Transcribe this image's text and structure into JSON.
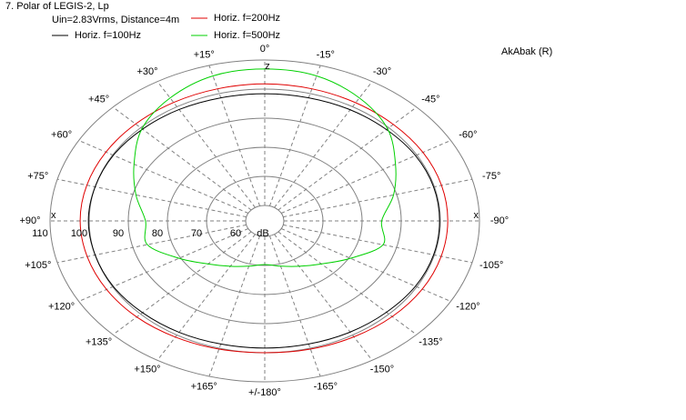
{
  "chart_data": {
    "type": "polar",
    "title": "7. Polar of LEGIS-2, Lp",
    "subtitle": "Uin=2.83Vrms, Distance=4m",
    "watermark": "AkAbak (R)",
    "r_unit": "dB",
    "theta_direction": "counterclockwise",
    "axis_labels": {
      "top": "z",
      "left": "x",
      "right": "x"
    },
    "grid": true,
    "rlim": [
      60,
      110
    ],
    "rticks": [
      60,
      70,
      80,
      90,
      100,
      110
    ],
    "thetaticks": [
      {
        "value": 0,
        "label": "0°"
      },
      {
        "value": 15,
        "label": "+15°"
      },
      {
        "value": 30,
        "label": "+30°"
      },
      {
        "value": 45,
        "label": "+45°"
      },
      {
        "value": 60,
        "label": "+60°"
      },
      {
        "value": 75,
        "label": "+75°"
      },
      {
        "value": 90,
        "label": "+90°"
      },
      {
        "value": 105,
        "label": "+105°"
      },
      {
        "value": 120,
        "label": "+120°"
      },
      {
        "value": 135,
        "label": "+135°"
      },
      {
        "value": 150,
        "label": "+150°"
      },
      {
        "value": 165,
        "label": "+165°"
      },
      {
        "value": 180,
        "label": "+/-180°"
      },
      {
        "value": -165,
        "label": "-165°"
      },
      {
        "value": -150,
        "label": "-150°"
      },
      {
        "value": -135,
        "label": "-135°"
      },
      {
        "value": -120,
        "label": "-120°"
      },
      {
        "value": -105,
        "label": "-105°"
      },
      {
        "value": -90,
        "label": "-90°"
      },
      {
        "value": -75,
        "label": "-75°"
      },
      {
        "value": -60,
        "label": "-60°"
      },
      {
        "value": -45,
        "label": "-45°"
      },
      {
        "value": -30,
        "label": "-30°"
      },
      {
        "value": -15,
        "label": "-15°"
      }
    ],
    "x": [
      0,
      15,
      30,
      45,
      60,
      75,
      90,
      105,
      120,
      135,
      150,
      165,
      180,
      -165,
      -150,
      -135,
      -120,
      -105,
      -90,
      -75,
      -60,
      -45,
      -30,
      -15
    ],
    "series": [
      {
        "name": "Horiz. f=100Hz",
        "color": "#000000",
        "values": [
          98.4,
          98.5,
          98.9,
          99.3,
          99.8,
          100,
          100.2,
          100,
          99.8,
          99.3,
          98.9,
          98.5,
          98.4,
          98.5,
          98.8,
          99.1,
          99.6,
          99.8,
          99.8,
          99.8,
          99.6,
          99.1,
          98.8,
          98.5
        ]
      },
      {
        "name": "Horiz. f=200Hz",
        "color": "#e00000",
        "values": [
          101.8,
          101.7,
          101.7,
          101.8,
          102,
          102.2,
          102.3,
          102.1,
          101.8,
          101.4,
          100.8,
          100.3,
          100,
          100.3,
          100.7,
          101.2,
          101.6,
          101.8,
          101.9,
          101.9,
          101.8,
          101.6,
          101.6,
          101.7
        ]
      },
      {
        "name": "Horiz. f=500Hz",
        "color": "#00d000",
        "values": [
          106.9,
          106.3,
          103.5,
          99.5,
          93.7,
          89.2,
          85.6,
          86.2,
          80.4,
          75.6,
          72.7,
          70.8,
          69.7,
          70.8,
          72.7,
          75.6,
          80.4,
          86.4,
          85,
          89.2,
          93.7,
          99.5,
          103.5,
          106.3
        ]
      }
    ]
  }
}
